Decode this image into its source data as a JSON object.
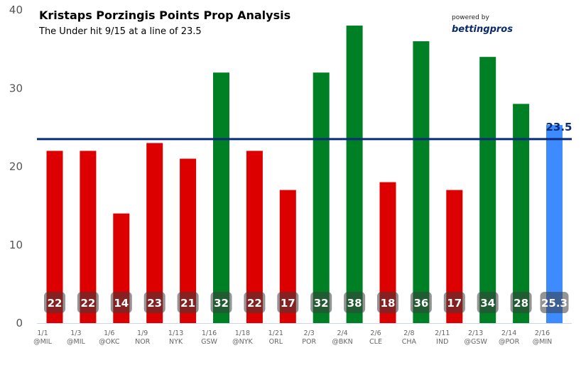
{
  "chart_data": {
    "type": "bar",
    "title": "Kristaps Porzingis Points Prop Analysis",
    "subtitle": "The Under hit 9/15 at a line of 23.5",
    "branding": {
      "powered_by": "powered by",
      "logo": "bettingpros"
    },
    "categories": [
      [
        "1/1",
        "@MIL"
      ],
      [
        "1/3",
        "@MIL"
      ],
      [
        "1/6",
        "@OKC"
      ],
      [
        "1/9",
        "NOR"
      ],
      [
        "1/13",
        "NYK"
      ],
      [
        "1/16",
        "GSW"
      ],
      [
        "1/18",
        "@NYK"
      ],
      [
        "1/21",
        "ORL"
      ],
      [
        "2/3",
        "POR"
      ],
      [
        "2/4",
        "@BKN"
      ],
      [
        "2/6",
        "CLE"
      ],
      [
        "2/8",
        "CHA"
      ],
      [
        "2/11",
        "IND"
      ],
      [
        "2/13",
        "@GSW"
      ],
      [
        "2/14",
        "@POR"
      ],
      [
        "2/16",
        "@MIN"
      ]
    ],
    "values": [
      22,
      22,
      14,
      23,
      21,
      32,
      22,
      17,
      32,
      38,
      18,
      36,
      17,
      34,
      28,
      25.3
    ],
    "data_labels": [
      "22",
      "22",
      "14",
      "23",
      "21",
      "32",
      "22",
      "17",
      "32",
      "38",
      "18",
      "36",
      "17",
      "34",
      "28",
      "25.3"
    ],
    "bar_status": [
      "under",
      "under",
      "under",
      "under",
      "under",
      "over",
      "under",
      "under",
      "over",
      "over",
      "under",
      "over",
      "under",
      "over",
      "over",
      "projection"
    ],
    "line": {
      "value": 23.5,
      "label": "23.5",
      "color": "#0a2a7a"
    },
    "ylim": [
      0,
      40
    ],
    "yticks": [
      0,
      10,
      20,
      30,
      40
    ],
    "grid": false,
    "colors": {
      "under": "#dd0000",
      "over": "#008025",
      "projection": "#3d8bff"
    }
  }
}
